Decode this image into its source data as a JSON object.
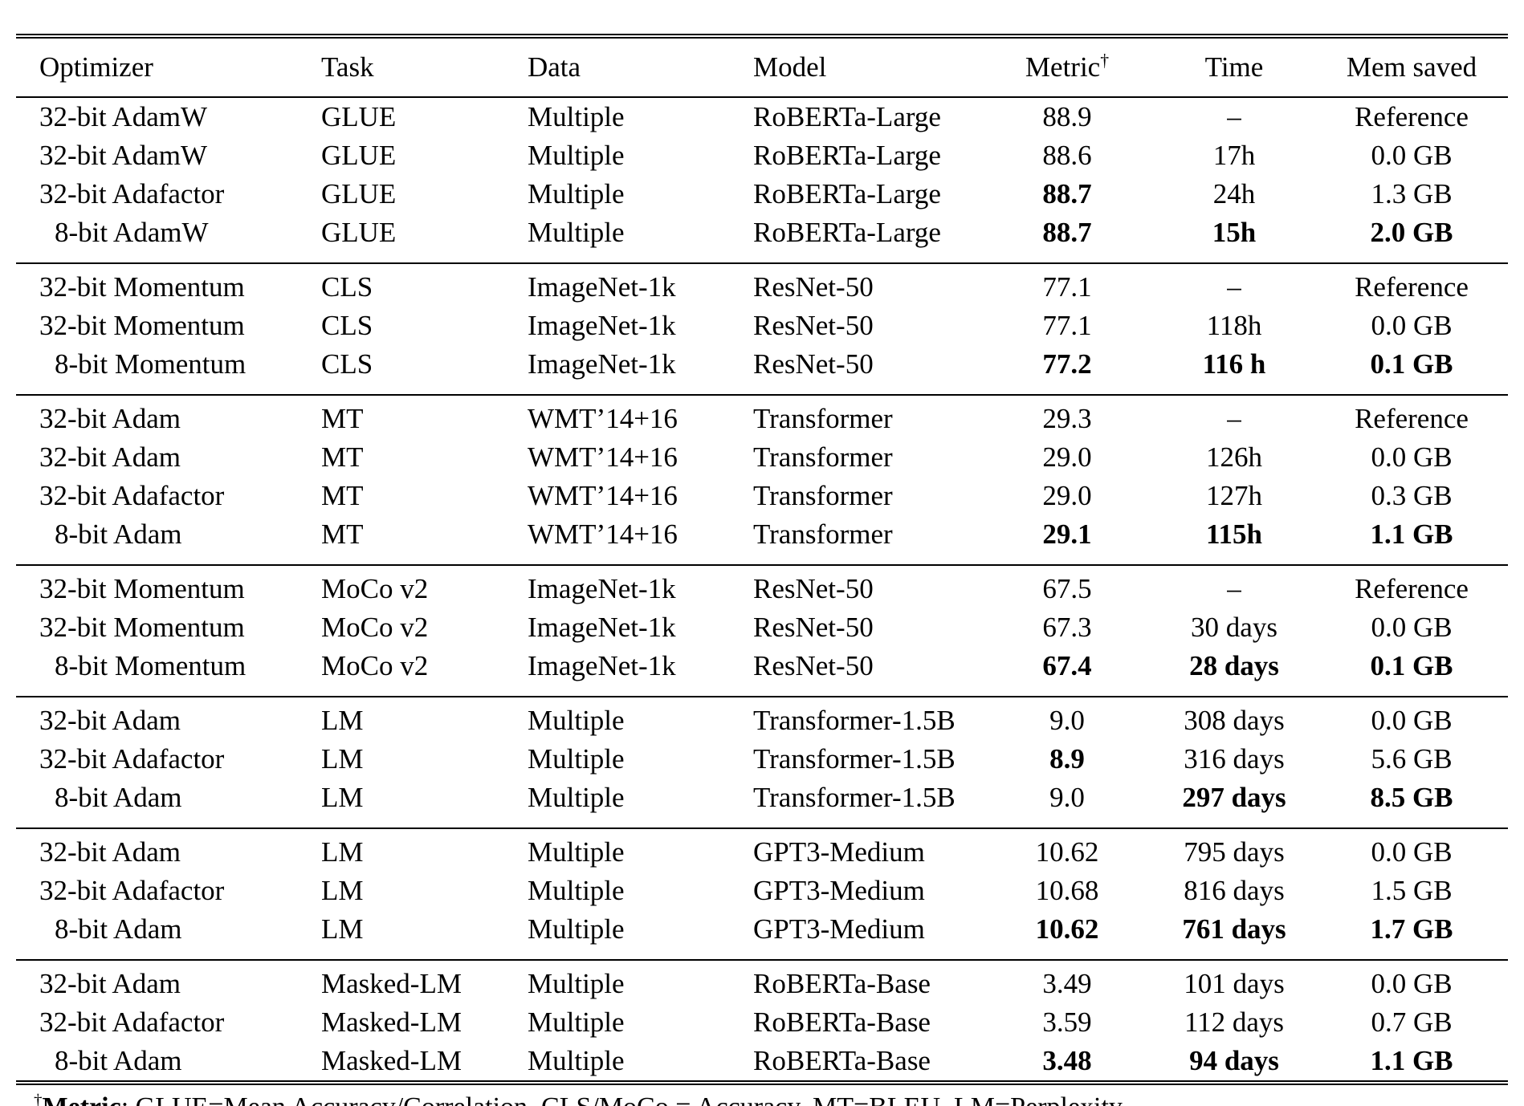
{
  "table": {
    "columns": [
      {
        "key": "optimizer",
        "label": "Optimizer",
        "align": "left"
      },
      {
        "key": "task",
        "label": "Task",
        "align": "left"
      },
      {
        "key": "data",
        "label": "Data",
        "align": "left"
      },
      {
        "key": "model",
        "label": "Model",
        "align": "left"
      },
      {
        "key": "metric",
        "label": "Metric",
        "sup": "†",
        "align": "center"
      },
      {
        "key": "time",
        "label": "Time",
        "align": "center"
      },
      {
        "key": "mem",
        "label": "Mem saved",
        "align": "center"
      }
    ],
    "sections": [
      {
        "rows": [
          {
            "optimizer": "32-bit AdamW",
            "task": "GLUE",
            "data": "Multiple",
            "model": "RoBERTa-Large",
            "metric": "88.9",
            "time": "–",
            "mem": "Reference",
            "bold": []
          },
          {
            "optimizer": "32-bit AdamW",
            "task": "GLUE",
            "data": "Multiple",
            "model": "RoBERTa-Large",
            "metric": "88.6",
            "time": "17h",
            "mem": "0.0 GB",
            "bold": []
          },
          {
            "optimizer": "32-bit Adafactor",
            "task": "GLUE",
            "data": "Multiple",
            "model": "RoBERTa-Large",
            "metric": "88.7",
            "time": "24h",
            "mem": "1.3 GB",
            "bold": [
              "metric"
            ]
          },
          {
            "optimizer": "8-bit AdamW",
            "task": "GLUE",
            "data": "Multiple",
            "model": "RoBERTa-Large",
            "metric": "88.7",
            "time": "15h",
            "mem": "2.0 GB",
            "bold": [
              "metric",
              "time",
              "mem"
            ]
          }
        ]
      },
      {
        "rows": [
          {
            "optimizer": "32-bit Momentum",
            "task": "CLS",
            "data": "ImageNet-1k",
            "model": "ResNet-50",
            "metric": "77.1",
            "time": "–",
            "mem": "Reference",
            "bold": []
          },
          {
            "optimizer": "32-bit Momentum",
            "task": "CLS",
            "data": "ImageNet-1k",
            "model": "ResNet-50",
            "metric": "77.1",
            "time": "118h",
            "mem": "0.0 GB",
            "bold": []
          },
          {
            "optimizer": "8-bit Momentum",
            "task": "CLS",
            "data": "ImageNet-1k",
            "model": "ResNet-50",
            "metric": "77.2",
            "time": "116 h",
            "mem": "0.1 GB",
            "bold": [
              "metric",
              "time",
              "mem"
            ]
          }
        ]
      },
      {
        "rows": [
          {
            "optimizer": "32-bit Adam",
            "task": "MT",
            "data": "WMT’14+16",
            "model": "Transformer",
            "metric": "29.3",
            "time": "–",
            "mem": "Reference",
            "bold": []
          },
          {
            "optimizer": "32-bit Adam",
            "task": "MT",
            "data": "WMT’14+16",
            "model": "Transformer",
            "metric": "29.0",
            "time": "126h",
            "mem": "0.0 GB",
            "bold": []
          },
          {
            "optimizer": "32-bit Adafactor",
            "task": "MT",
            "data": "WMT’14+16",
            "model": "Transformer",
            "metric": "29.0",
            "time": "127h",
            "mem": "0.3 GB",
            "bold": []
          },
          {
            "optimizer": "8-bit Adam",
            "task": "MT",
            "data": "WMT’14+16",
            "model": "Transformer",
            "metric": "29.1",
            "time": "115h",
            "mem": "1.1 GB",
            "bold": [
              "metric",
              "time",
              "mem"
            ]
          }
        ]
      },
      {
        "rows": [
          {
            "optimizer": "32-bit Momentum",
            "task": "MoCo v2",
            "data": "ImageNet-1k",
            "model": "ResNet-50",
            "metric": "67.5",
            "time": "–",
            "mem": "Reference",
            "bold": []
          },
          {
            "optimizer": "32-bit Momentum",
            "task": "MoCo v2",
            "data": "ImageNet-1k",
            "model": "ResNet-50",
            "metric": "67.3",
            "time": "30 days",
            "mem": "0.0 GB",
            "bold": []
          },
          {
            "optimizer": "8-bit Momentum",
            "task": "MoCo v2",
            "data": "ImageNet-1k",
            "model": "ResNet-50",
            "metric": "67.4",
            "time": "28 days",
            "mem": "0.1 GB",
            "bold": [
              "metric",
              "time",
              "mem"
            ]
          }
        ]
      },
      {
        "rows": [
          {
            "optimizer": "32-bit Adam",
            "task": "LM",
            "data": "Multiple",
            "model": "Transformer-1.5B",
            "metric": "9.0",
            "time": "308 days",
            "mem": "0.0 GB",
            "bold": []
          },
          {
            "optimizer": "32-bit Adafactor",
            "task": "LM",
            "data": "Multiple",
            "model": "Transformer-1.5B",
            "metric": "8.9",
            "time": "316 days",
            "mem": "5.6 GB",
            "bold": [
              "metric"
            ]
          },
          {
            "optimizer": "8-bit Adam",
            "task": "LM",
            "data": "Multiple",
            "model": "Transformer-1.5B",
            "metric": "9.0",
            "time": "297 days",
            "mem": "8.5 GB",
            "bold": [
              "time",
              "mem"
            ]
          }
        ]
      },
      {
        "rows": [
          {
            "optimizer": "32-bit Adam",
            "task": "LM",
            "data": "Multiple",
            "model": "GPT3-Medium",
            "metric": "10.62",
            "time": "795 days",
            "mem": "0.0 GB",
            "bold": []
          },
          {
            "optimizer": "32-bit Adafactor",
            "task": "LM",
            "data": "Multiple",
            "model": "GPT3-Medium",
            "metric": "10.68",
            "time": "816 days",
            "mem": "1.5 GB",
            "bold": []
          },
          {
            "optimizer": "8-bit Adam",
            "task": "LM",
            "data": "Multiple",
            "model": "GPT3-Medium",
            "metric": "10.62",
            "time": "761 days",
            "mem": "1.7 GB",
            "bold": [
              "metric",
              "time",
              "mem"
            ]
          }
        ]
      },
      {
        "rows": [
          {
            "optimizer": "32-bit Adam",
            "task": "Masked-LM",
            "data": "Multiple",
            "model": "RoBERTa-Base",
            "metric": "3.49",
            "time": "101 days",
            "mem": "0.0 GB",
            "bold": []
          },
          {
            "optimizer": "32-bit Adafactor",
            "task": "Masked-LM",
            "data": "Multiple",
            "model": "RoBERTa-Base",
            "metric": "3.59",
            "time": "112 days",
            "mem": "0.7 GB",
            "bold": []
          },
          {
            "optimizer": "8-bit Adam",
            "task": "Masked-LM",
            "data": "Multiple",
            "model": "RoBERTa-Base",
            "metric": "3.48",
            "time": "94 days",
            "mem": "1.1 GB",
            "bold": [
              "metric",
              "time",
              "mem"
            ]
          }
        ]
      }
    ]
  },
  "footnote": {
    "dagger": "†",
    "term": "Metric",
    "text": ": GLUE=Mean Accuracy/Correlation. CLS/MoCo = Accuracy. MT=BLEU. LM=Perplexity."
  }
}
